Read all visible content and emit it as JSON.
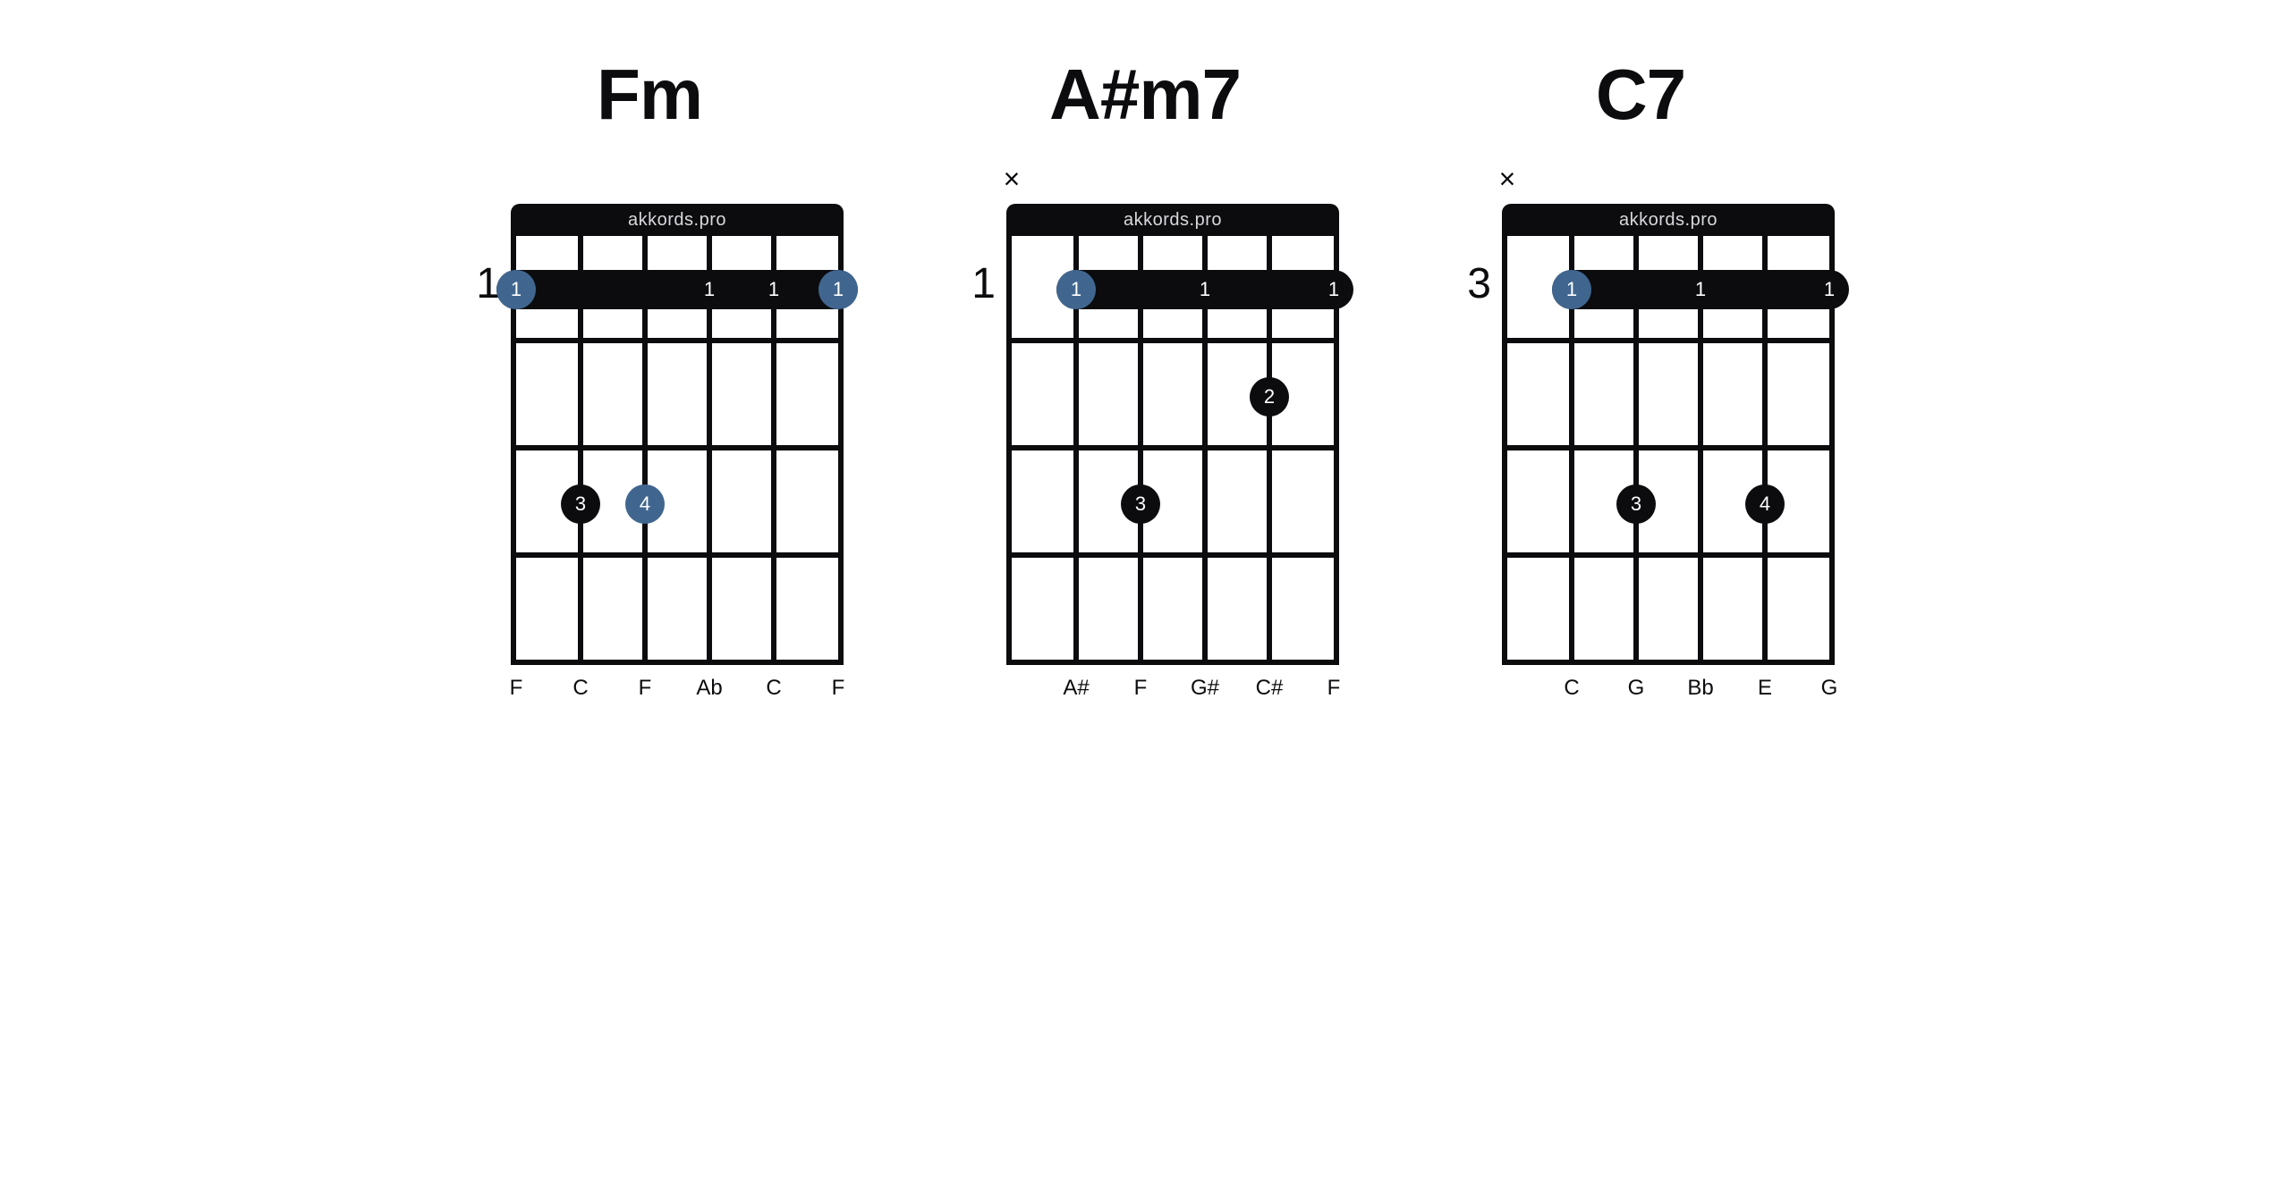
{
  "watermark": "akkords.pro",
  "colors": {
    "line": "#0c0c0f",
    "dot_black": "#0c0c0f",
    "dot_blue": "#40668f",
    "background": "#ffffff",
    "nut_text": "#d8d9dc",
    "dot_text": "#ffffff"
  },
  "layout": {
    "string_count": 6,
    "fret_count": 4,
    "string_spacing": 72,
    "fret_height": 120,
    "dot_diameter": 44,
    "barre_height": 44,
    "line_width": 6,
    "title_fontsize": 80,
    "fret_label_fontsize": 48,
    "note_label_fontsize": 24,
    "dot_label_fontsize": 22
  },
  "chords": [
    {
      "name": "Fm",
      "start_fret": "1",
      "mutes": [],
      "barre": {
        "fret": 1,
        "from_string": 1,
        "to_string": 6,
        "labels_at": [
          1,
          4,
          5,
          6
        ],
        "finger": "1",
        "root_strings": [
          1,
          6
        ]
      },
      "dots": [
        {
          "string": 2,
          "fret": 3,
          "finger": "3",
          "color": "black"
        },
        {
          "string": 3,
          "fret": 3,
          "finger": "4",
          "color": "blue"
        }
      ],
      "notes": [
        "F",
        "C",
        "F",
        "Ab",
        "C",
        "F"
      ]
    },
    {
      "name": "A#m7",
      "start_fret": "1",
      "mutes": [
        1
      ],
      "barre": {
        "fret": 1,
        "from_string": 2,
        "to_string": 6,
        "labels_at": [
          2,
          4,
          6
        ],
        "finger": "1",
        "root_strings": [
          2
        ]
      },
      "dots": [
        {
          "string": 5,
          "fret": 2,
          "finger": "2",
          "color": "black"
        },
        {
          "string": 3,
          "fret": 3,
          "finger": "3",
          "color": "black"
        }
      ],
      "notes": [
        "",
        "A#",
        "F",
        "G#",
        "C#",
        "F"
      ]
    },
    {
      "name": "C7",
      "start_fret": "3",
      "mutes": [
        1
      ],
      "barre": {
        "fret": 1,
        "from_string": 2,
        "to_string": 6,
        "labels_at": [
          2,
          4,
          6
        ],
        "finger": "1",
        "root_strings": [
          2
        ]
      },
      "dots": [
        {
          "string": 3,
          "fret": 3,
          "finger": "3",
          "color": "black"
        },
        {
          "string": 5,
          "fret": 3,
          "finger": "4",
          "color": "black"
        }
      ],
      "notes": [
        "",
        "C",
        "G",
        "Bb",
        "E",
        "G"
      ]
    }
  ]
}
